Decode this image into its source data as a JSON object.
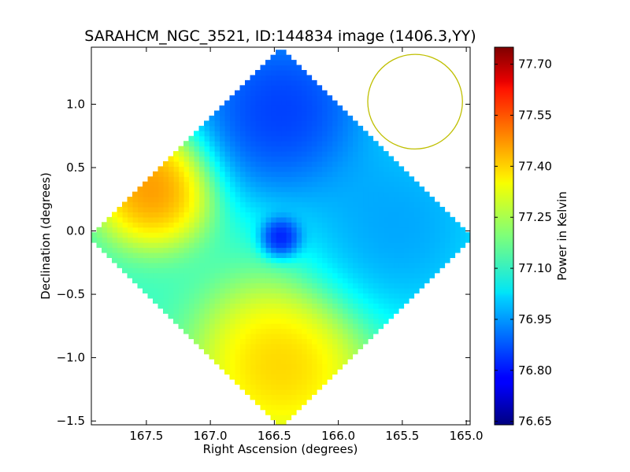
{
  "chart_data": {
    "type": "heatmap",
    "title": "SARAHCM_NGC_3521, ID:144834 image (1406.3,YY)",
    "xlabel": "Right Ascension (degrees)",
    "ylabel": "Declination (degrees)",
    "xlim": [
      167.93,
      164.97
    ],
    "ylim": [
      -1.53,
      1.45
    ],
    "xticks": [
      {
        "value": 167.5,
        "label": "167.5"
      },
      {
        "value": 167.0,
        "label": "167.0"
      },
      {
        "value": 166.5,
        "label": "166.5"
      },
      {
        "value": 166.0,
        "label": "166.0"
      },
      {
        "value": 165.5,
        "label": "165.5"
      },
      {
        "value": 165.0,
        "label": "165.0"
      }
    ],
    "yticks": [
      {
        "value": 1.0,
        "label": "1.0"
      },
      {
        "value": 0.5,
        "label": "0.5"
      },
      {
        "value": 0.0,
        "label": "0.0"
      },
      {
        "value": -0.5,
        "label": "−0.5"
      },
      {
        "value": -1.0,
        "label": "−1.0"
      },
      {
        "value": -1.5,
        "label": "−1.5"
      }
    ],
    "colorbar": {
      "label": "Power in Kelvin",
      "range": [
        76.64,
        77.75
      ],
      "colormap": "jet",
      "ticks": [
        {
          "value": 76.65,
          "label": "76.65"
        },
        {
          "value": 76.8,
          "label": "76.80"
        },
        {
          "value": 76.95,
          "label": "76.95"
        },
        {
          "value": 77.1,
          "label": "77.10"
        },
        {
          "value": 77.25,
          "label": "77.25"
        },
        {
          "value": 77.4,
          "label": "77.40"
        },
        {
          "value": 77.55,
          "label": "77.55"
        },
        {
          "value": 77.7,
          "label": "77.70"
        }
      ]
    },
    "map": {
      "center": {
        "ra": 166.45,
        "dec": -0.04
      },
      "half_width_deg": 1.5,
      "base_value": 77.12,
      "features": [
        {
          "name": "north-lobe",
          "ra": 166.45,
          "dec": 0.95,
          "value": 76.76,
          "radius": 0.55
        },
        {
          "name": "east-lobe",
          "ra": 165.55,
          "dec": 0.05,
          "value": 76.91,
          "radius": 0.6
        },
        {
          "name": "south-lobe",
          "ra": 166.45,
          "dec": -1.05,
          "value": 77.46,
          "radius": 0.5
        },
        {
          "name": "west-lobe",
          "ra": 167.45,
          "dec": 0.35,
          "value": 77.55,
          "radius": 0.35
        },
        {
          "name": "center-dip",
          "ra": 166.45,
          "dec": -0.05,
          "value": 76.7,
          "radius": 0.12
        }
      ]
    },
    "beam_circle": {
      "ra": 165.4,
      "dec": 1.02,
      "radius_deg": 0.37,
      "color": "#bfbf00"
    }
  },
  "colors": {
    "frame": "#000000",
    "background": "#ffffff"
  }
}
